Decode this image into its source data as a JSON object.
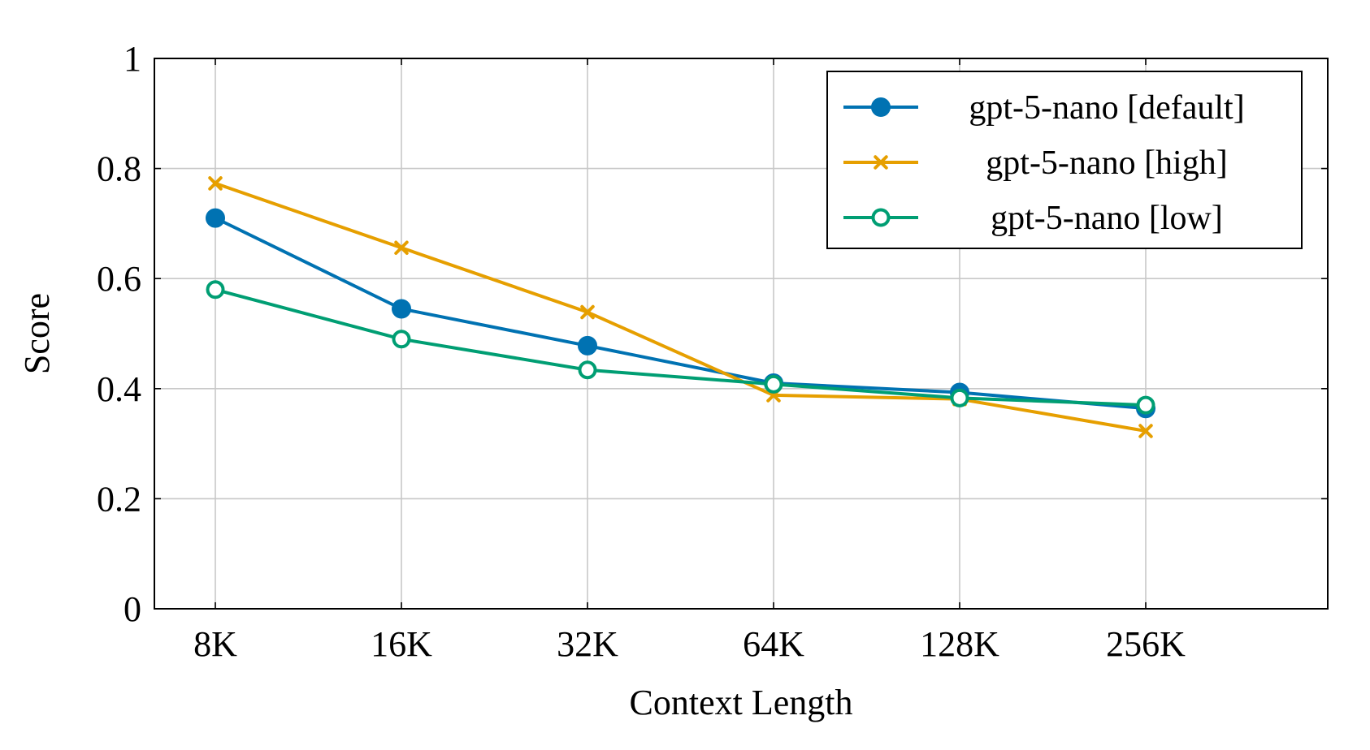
{
  "chart_data": {
    "type": "line",
    "title": "",
    "xlabel": "Context Length",
    "ylabel": "Score",
    "categories": [
      "8K",
      "16K",
      "32K",
      "64K",
      "128K",
      "256K"
    ],
    "ylim": [
      0,
      1
    ],
    "yticks": [
      "0",
      "0.2",
      "0.4",
      "0.6",
      "0.8",
      "1"
    ],
    "ytick_values": [
      0,
      0.2,
      0.4,
      0.6,
      0.8,
      1
    ],
    "grid": true,
    "legend_position": "top-right",
    "series": [
      {
        "name": "gpt-5-nano [default]",
        "color": "#0072b2",
        "marker": "filled-circle",
        "values": [
          0.71,
          0.545,
          0.478,
          0.41,
          0.393,
          0.364
        ]
      },
      {
        "name": "gpt-5-nano [high]",
        "color": "#e69f00",
        "marker": "cross",
        "values": [
          0.773,
          0.656,
          0.539,
          0.388,
          0.381,
          0.323
        ]
      },
      {
        "name": "gpt-5-nano [low]",
        "color": "#009e73",
        "marker": "open-circle",
        "values": [
          0.58,
          0.49,
          0.434,
          0.408,
          0.383,
          0.37
        ]
      }
    ]
  }
}
